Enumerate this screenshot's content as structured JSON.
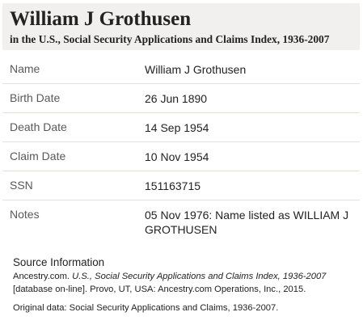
{
  "header": {
    "title": "William J Grothusen",
    "subtitle": "in the U.S., Social Security Applications and Claims Index, 1936-2007"
  },
  "records": [
    {
      "label": "Name",
      "value": "William J Grothusen"
    },
    {
      "label": "Birth Date",
      "value": "26 Jun 1890"
    },
    {
      "label": "Death Date",
      "value": "14 Sep 1954"
    },
    {
      "label": "Claim Date",
      "value": "10 Nov 1954"
    },
    {
      "label": "SSN",
      "value": "151163715"
    },
    {
      "label": "Notes",
      "value": "05 Nov 1976: Name listed as WILLIAM J GROTHUSEN"
    }
  ],
  "source": {
    "heading": "Source Information",
    "citation_prefix": "Ancestry.com. ",
    "citation_title": "U.S., Social Security Applications and Claims Index, 1936-2007",
    "citation_suffix": " [database on-line]. Provo, UT, USA: Ancestry.com Operations, Inc., 2015.",
    "original_data": "Original data: Social Security Applications and Claims, 1936-2007."
  }
}
